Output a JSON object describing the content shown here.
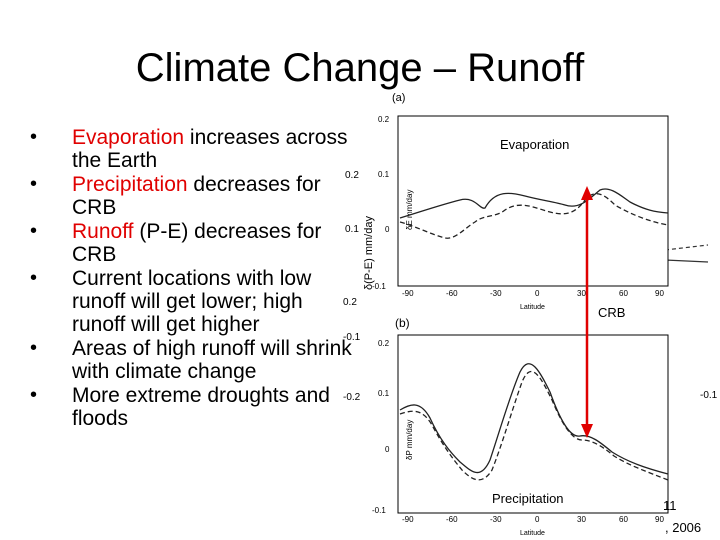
{
  "slide": {
    "title": "Climate Change – Runoff",
    "bullets": [
      {
        "highlight": "Evaporation",
        "rest": " increases across the Earth"
      },
      {
        "highlight": "Precipitation",
        "rest": " decreases for CRB"
      },
      {
        "highlight": "Runoff",
        "rest": " (P-E) decreases for CRB"
      },
      {
        "highlight": "",
        "rest": "Current locations with low runoff will get lower; high runoff will get higher"
      },
      {
        "highlight": "",
        "rest": "Areas of high runoff will shrink with climate change"
      },
      {
        "highlight": "",
        "rest": "More extreme droughts and floods"
      }
    ],
    "slide_number": "11",
    "citation_fragment": ", 2006"
  },
  "figure": {
    "panel_a_label": "(a)",
    "panel_b_label": "(b)",
    "evap_ylabel": "δE mm/day",
    "precip_ylabel": "δP mm/day",
    "pe_ylabel": "δ(P-E) mm/day",
    "latitude_label": "Latitude",
    "evap_yticks": [
      "0.2",
      "0.1",
      "0",
      "-0.1"
    ],
    "precip_yticks": [
      "0.2",
      "0.1",
      "0",
      "-0.1"
    ],
    "pe_yticks": [
      "0.2",
      "0.1",
      "0",
      "-0.1",
      "-0.2"
    ],
    "xticks": [
      "-90",
      "-60",
      "-30",
      "0",
      "30",
      "60",
      "90"
    ],
    "annotations": {
      "evaporation": "Evaporation",
      "crb": "CRB",
      "precipitation": "Precipitation"
    },
    "arrow_color": "#e00000"
  }
}
